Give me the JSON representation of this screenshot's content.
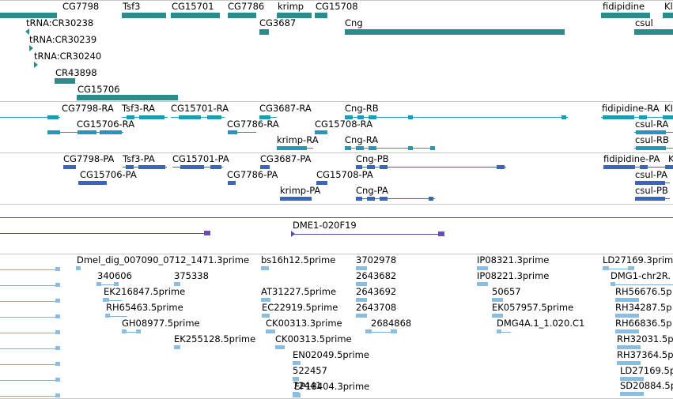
{
  "tracks": {
    "genes": {
      "labels": [
        "CG7798",
        "Tsf3",
        "CG15701",
        "CG7786",
        "krimp",
        "CG15708",
        "fidipidine",
        "Kl",
        "tRNA:CR30238",
        "CG3687",
        "Cng",
        "csul",
        "tRNA:CR30239",
        "tRNA:CR30240",
        "CR43898",
        "CG15706"
      ]
    },
    "transcripts": {
      "labels": [
        "CG7798-RA",
        "Tsf3-RA",
        "CG15701-RA",
        "CG3687-RA",
        "Cng-RB",
        "fidipidine-RA",
        "KI",
        "CG15706-RA",
        "CG7786-RA",
        "CG15708-RA",
        "csul-RA",
        "krimp-RA",
        "Cng-RA",
        "csul-RB"
      ]
    },
    "proteins": {
      "labels": [
        "CG7798-PA",
        "Tsf3-PA",
        "CG15701-PA",
        "CG3687-PA",
        "Cng-PB",
        "fidipidine-PA",
        "K",
        "CG15706-PA",
        "CG7786-PA",
        "CG15708-PA",
        "csul-PA",
        "krimp-PA",
        "Cng-PA",
        "csul-PB"
      ]
    },
    "clones": {
      "labels": [
        "DME1-020F19"
      ]
    },
    "ests": {
      "labels": [
        "Dmel_dig_007090_0712_1471.3prime",
        "bs16h12.5prime",
        "3702978",
        "IP08321.3prime",
        "LD27169.3prime",
        "340606",
        "375338",
        "2643682",
        "IP08221.3prime",
        "DMG1-chr2R.",
        "EK216847.5prime",
        "AT31227.5prime",
        "2643692",
        "50657",
        "RH56676.5p",
        "RH65463.5prime",
        "EC22919.5prime",
        "2643708",
        "EK057957.5prime",
        "RH34287.5p",
        "GH08977.5prime",
        "CK00313.3prime",
        "2684868",
        "DMG4A.1_1.020.C1",
        "RH66836.5p",
        "CK00313.5prime",
        "RH32031.5p",
        "EK255128.5prime",
        "EN02049.5prime",
        "RH37364.5p",
        "522457",
        "LD27169.5p",
        "72441",
        "SD20884.5p",
        "EP18404.3prime"
      ]
    }
  },
  "colors": {
    "gene": "#2b8c8c",
    "transcript": "#1f9bb5",
    "protein": "#3d62c2",
    "clone": "#5b4aa8",
    "est": "#7fb2d8"
  }
}
